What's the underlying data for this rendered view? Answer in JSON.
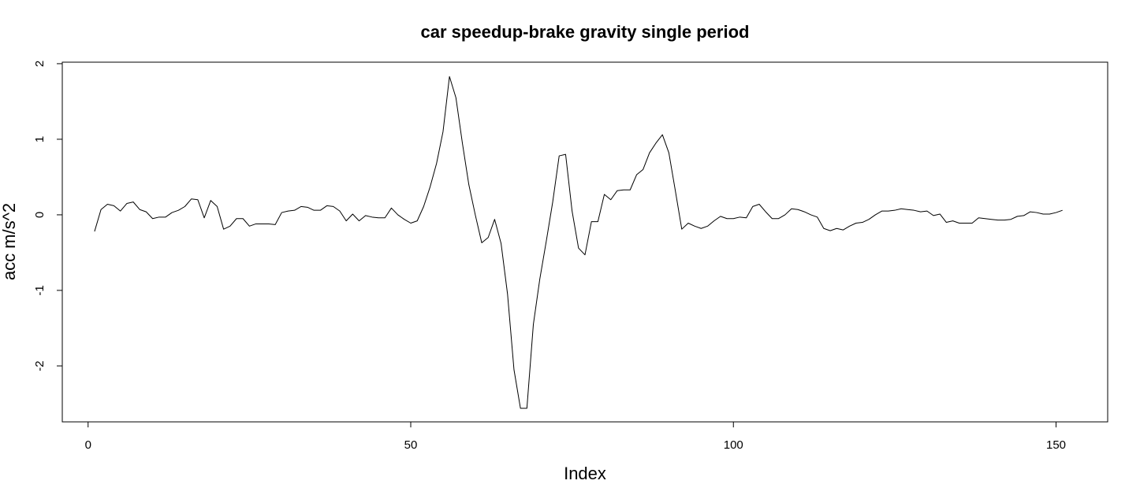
{
  "chart_data": {
    "type": "line",
    "title": "car speedup-brake gravity single period",
    "xlabel": "Index",
    "ylabel": "acc m/s^2",
    "xlim": [
      -4,
      158
    ],
    "ylim": [
      -2.74,
      2.02
    ],
    "x_ticks": [
      0,
      50,
      100,
      150
    ],
    "x_tick_labels": [
      "0",
      "50",
      "100",
      "150"
    ],
    "y_ticks": [
      -2,
      -1,
      0,
      1,
      2
    ],
    "y_tick_labels": [
      "-2",
      "-1",
      "0",
      "1",
      "2"
    ],
    "grid": false,
    "legend": "none",
    "line_color": "#000000",
    "x": [
      1,
      2,
      3,
      4,
      5,
      6,
      7,
      8,
      9,
      10,
      11,
      12,
      13,
      14,
      15,
      16,
      17,
      18,
      19,
      20,
      21,
      22,
      23,
      24,
      25,
      26,
      27,
      28,
      29,
      30,
      31,
      32,
      33,
      34,
      35,
      36,
      37,
      38,
      39,
      40,
      41,
      42,
      43,
      44,
      45,
      46,
      47,
      48,
      49,
      50,
      51,
      52,
      53,
      54,
      55,
      56,
      57,
      58,
      59,
      60,
      61,
      62,
      63,
      64,
      65,
      66,
      67,
      68,
      69,
      70,
      71,
      72,
      73,
      74,
      75,
      76,
      77,
      78,
      79,
      80,
      81,
      82,
      83,
      84,
      85,
      86,
      87,
      88,
      89,
      90,
      91,
      92,
      93,
      94,
      95,
      96,
      97,
      98,
      99,
      100,
      101,
      102,
      103,
      104,
      105,
      106,
      107,
      108,
      109,
      110,
      111,
      112,
      113,
      114,
      115,
      116,
      117,
      118,
      119,
      120,
      121,
      122,
      123,
      124,
      125,
      126,
      127,
      128,
      129,
      130,
      131,
      132,
      133,
      134,
      135,
      136,
      137,
      138,
      139,
      140,
      141,
      142,
      143,
      144,
      145,
      146,
      147,
      148,
      149,
      150,
      151
    ],
    "values": [
      -0.22,
      0.07,
      0.14,
      0.12,
      0.05,
      0.15,
      0.17,
      0.07,
      0.04,
      -0.05,
      -0.03,
      -0.03,
      0.03,
      0.06,
      0.11,
      0.21,
      0.2,
      -0.04,
      0.19,
      0.11,
      -0.19,
      -0.15,
      -0.05,
      -0.05,
      -0.15,
      -0.12,
      -0.12,
      -0.12,
      -0.13,
      0.03,
      0.05,
      0.06,
      0.11,
      0.1,
      0.06,
      0.06,
      0.12,
      0.11,
      0.05,
      -0.08,
      0.01,
      -0.08,
      -0.01,
      -0.03,
      -0.04,
      -0.04,
      0.09,
      0.0,
      -0.06,
      -0.11,
      -0.08,
      0.11,
      0.37,
      0.68,
      1.1,
      1.83,
      1.55,
      0.95,
      0.4,
      0.0,
      -0.37,
      -0.3,
      -0.06,
      -0.38,
      -1.05,
      -2.05,
      -2.56,
      -2.56,
      -1.45,
      -0.85,
      -0.35,
      0.17,
      0.78,
      0.8,
      0.05,
      -0.44,
      -0.53,
      -0.09,
      -0.09,
      0.27,
      0.2,
      0.32,
      0.33,
      0.33,
      0.53,
      0.6,
      0.82,
      0.95,
      1.06,
      0.82,
      0.32,
      -0.19,
      -0.11,
      -0.15,
      -0.18,
      -0.15,
      -0.08,
      -0.02,
      -0.05,
      -0.05,
      -0.03,
      -0.04,
      0.11,
      0.14,
      0.04,
      -0.05,
      -0.05,
      0.0,
      0.08,
      0.07,
      0.04,
      0.0,
      -0.03,
      -0.18,
      -0.21,
      -0.18,
      -0.2,
      -0.15,
      -0.11,
      -0.1,
      -0.06,
      0.0,
      0.05,
      0.05,
      0.06,
      0.08,
      0.07,
      0.06,
      0.04,
      0.05,
      -0.01,
      0.01,
      -0.1,
      -0.08,
      -0.11,
      -0.11,
      -0.11,
      -0.04,
      -0.05,
      -0.06,
      -0.07,
      -0.07,
      -0.06,
      -0.02,
      -0.01,
      0.04,
      0.03,
      0.01,
      0.01,
      0.03,
      0.06
    ]
  }
}
